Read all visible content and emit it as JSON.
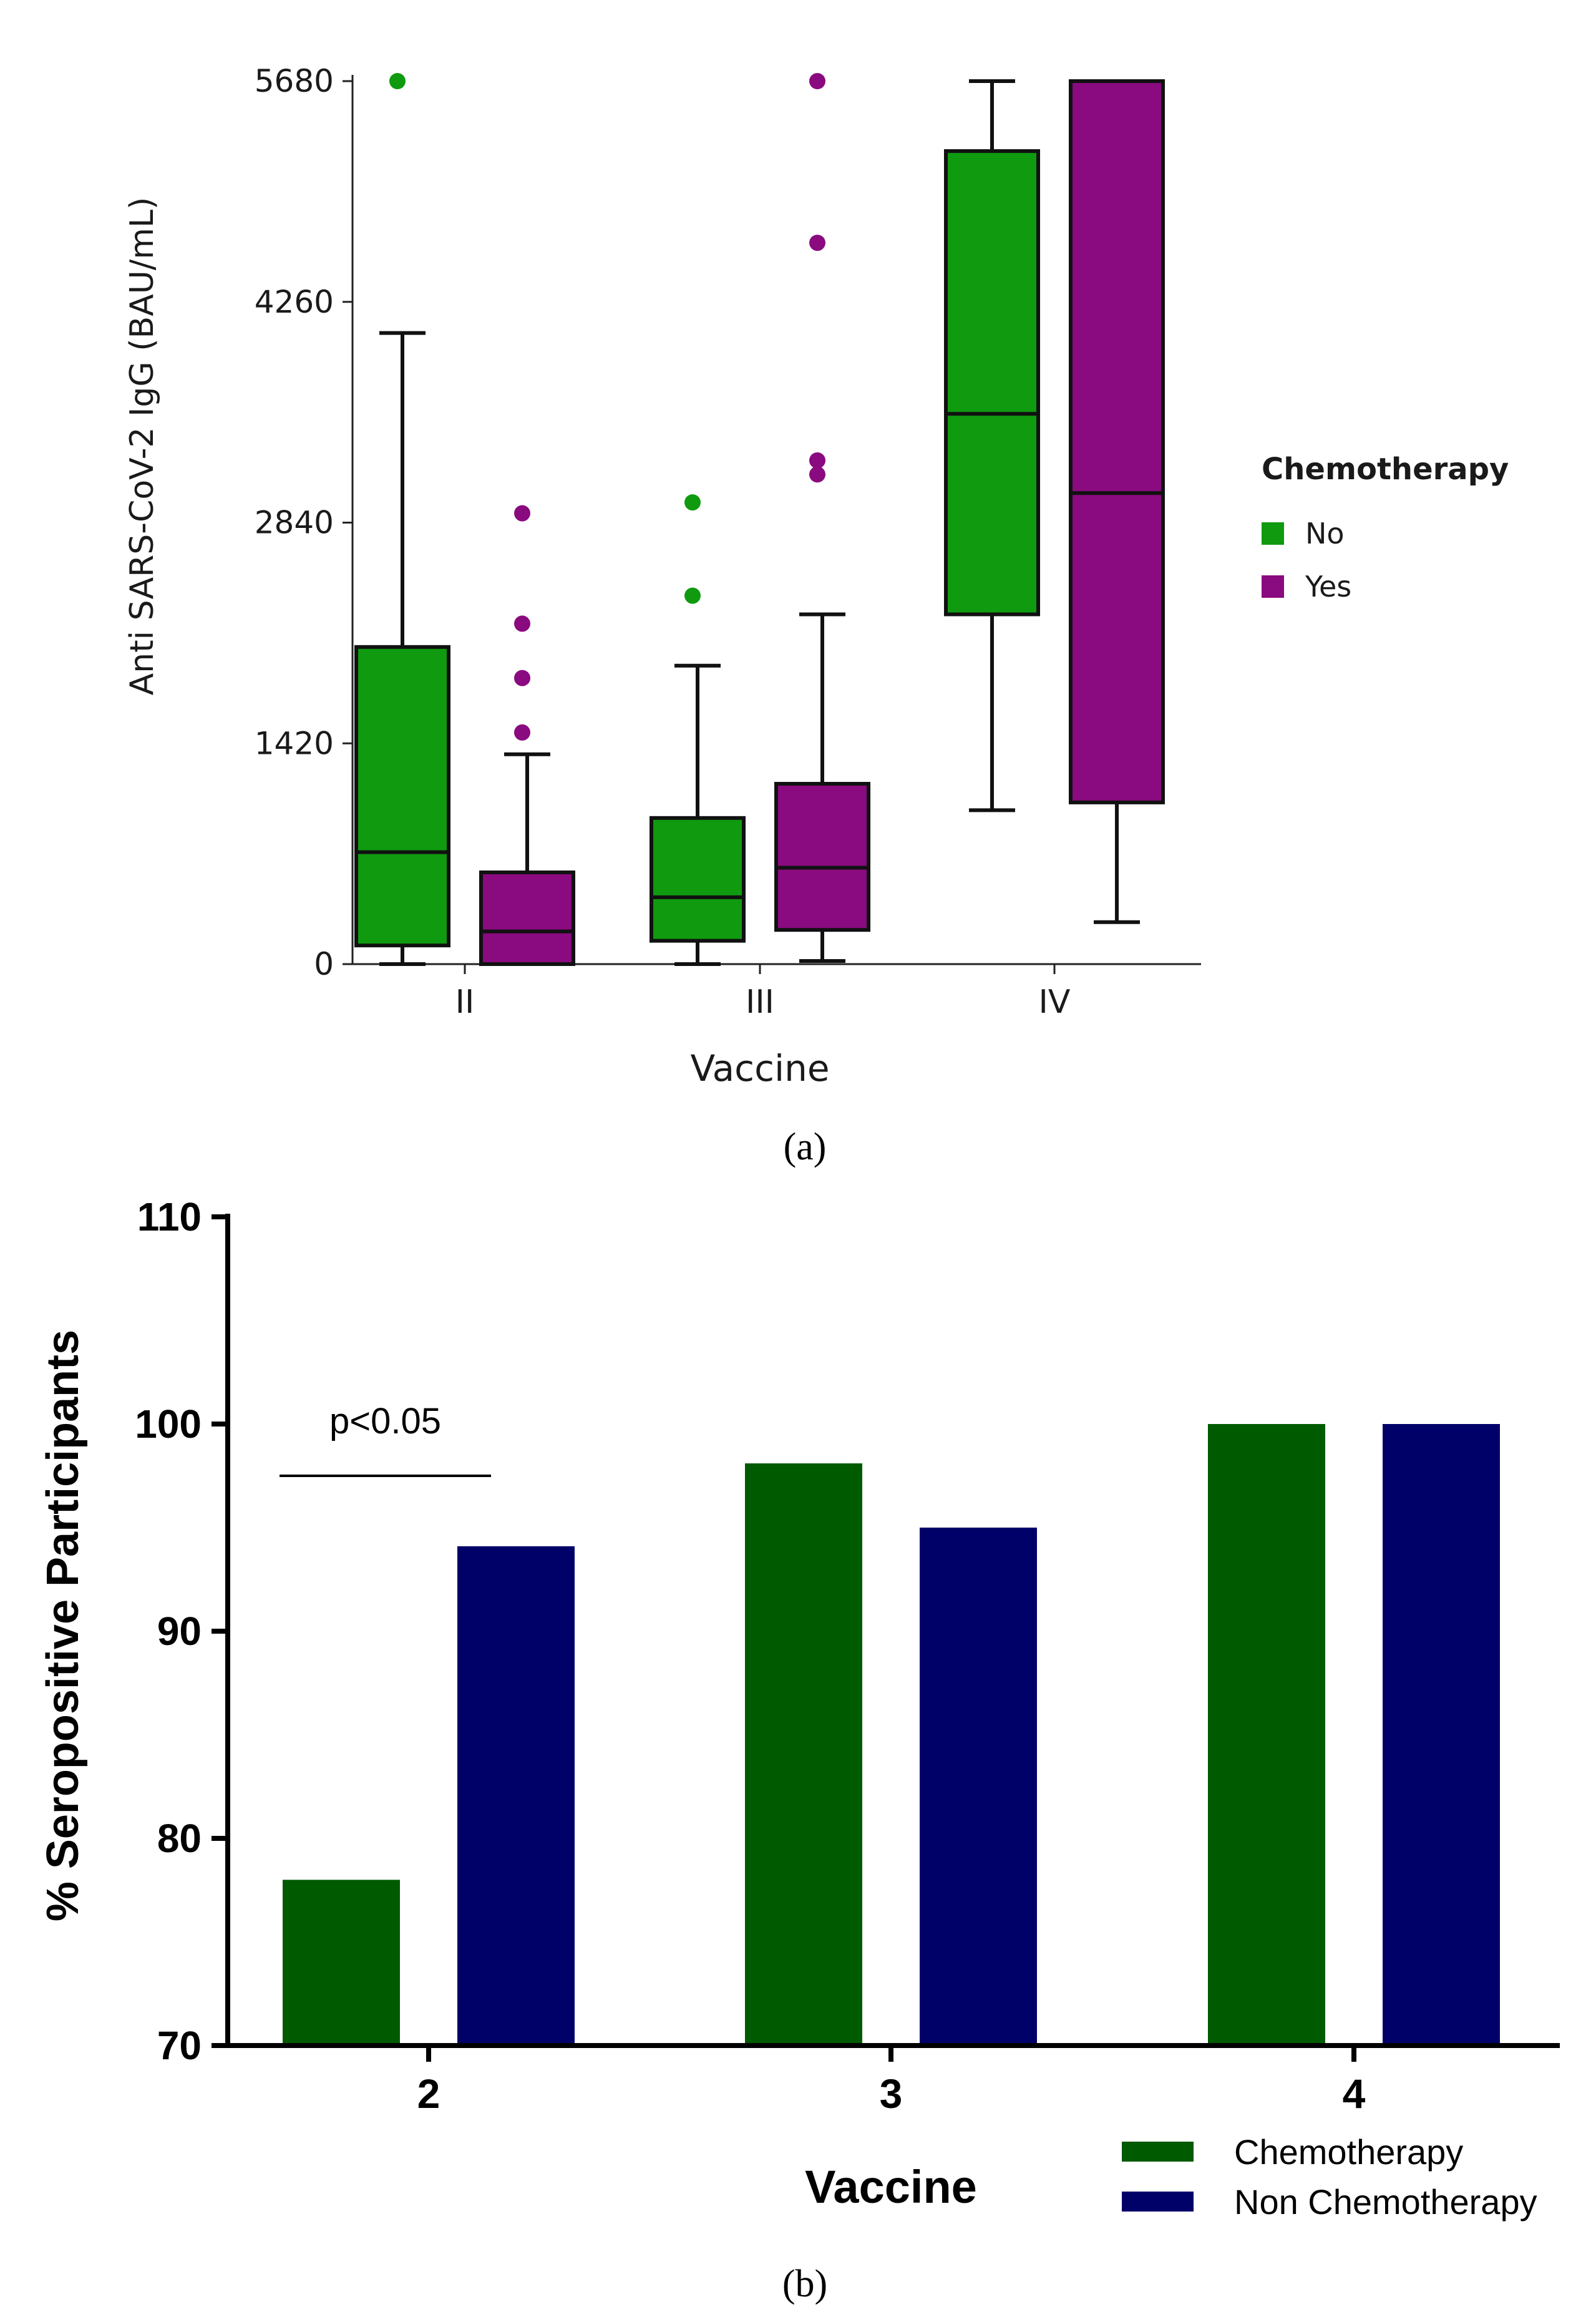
{
  "figure": {
    "panel_a_caption": "(a)",
    "panel_b_caption": "(b)"
  },
  "chart_data": [
    {
      "type": "box",
      "ylabel": "Anti SARS-CoV-2 IgG (BAU/mL)",
      "xlabel": "Vaccine",
      "ylim": [
        0,
        5680
      ],
      "yticks": [
        0,
        1420,
        2840,
        4260,
        5680
      ],
      "categories": [
        "II",
        "III",
        "IV"
      ],
      "legend_title": "Chemotherapy",
      "legend_position": "right",
      "series": [
        {
          "name": "No",
          "color": "#0f9a0f",
          "boxes": [
            {
              "category": "II",
              "min": 0,
              "q1": 120,
              "median": 720,
              "q3": 2040,
              "max": 4060,
              "outliers": [
                5700
              ]
            },
            {
              "category": "III",
              "min": 0,
              "q1": 150,
              "median": 430,
              "q3": 940,
              "max": 1920,
              "outliers": [
                2370,
                2970
              ]
            },
            {
              "category": "IV",
              "min": 990,
              "q1": 2250,
              "median": 3540,
              "q3": 5230,
              "max": 5680,
              "outliers": []
            }
          ]
        },
        {
          "name": "Yes",
          "color": "#8a0a7f",
          "boxes": [
            {
              "category": "II",
              "min": 0,
              "q1": 0,
              "median": 210,
              "q3": 590,
              "max": 1350,
              "outliers": [
                1490,
                1840,
                2190,
                2900
              ]
            },
            {
              "category": "III",
              "min": 20,
              "q1": 220,
              "median": 620,
              "q3": 1160,
              "max": 2250,
              "outliers": [
                3150,
                3240,
                4640,
                5700
              ]
            },
            {
              "category": "IV",
              "min": 270,
              "q1": 1040,
              "median": 3030,
              "q3": 5680,
              "max": 5680,
              "outliers": []
            }
          ]
        }
      ]
    },
    {
      "type": "bar",
      "ylabel": "% Seropositive Participants",
      "xlabel": "Vaccine",
      "ylim": [
        70,
        110
      ],
      "yticks": [
        70,
        80,
        90,
        100,
        110
      ],
      "categories": [
        "2",
        "3",
        "4"
      ],
      "legend_position": "bottom-right",
      "series": [
        {
          "name": "Chemotherapy",
          "color": "#005a00",
          "values": [
            78,
            98.1,
            100
          ]
        },
        {
          "name": "Non Chemotherapy",
          "color": "#000069",
          "values": [
            94.1,
            95,
            100
          ]
        }
      ],
      "annotations": [
        {
          "text": "p<0.05",
          "category": "2"
        }
      ]
    }
  ]
}
